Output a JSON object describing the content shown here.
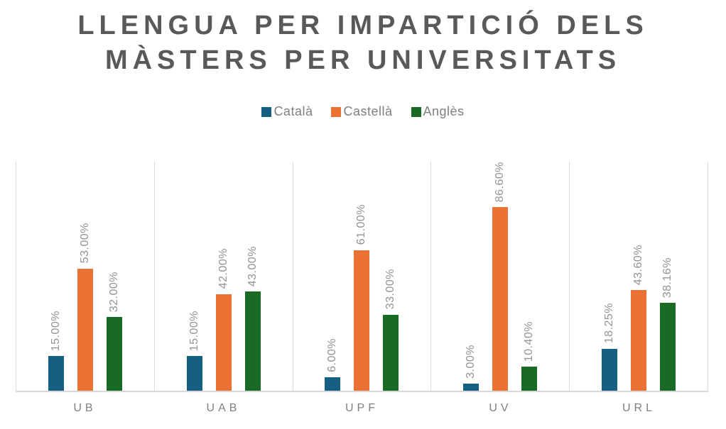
{
  "chart_data": {
    "type": "bar",
    "title": "LLENGUA PER IMPARTICIÓ DELS MÀSTERS PER UNIVERSITATS",
    "title_lines": [
      "LLENGUA PER IMPARTICIÓ DELS",
      "MÀSTERS PER UNIVERSITATS"
    ],
    "categories": [
      "UB",
      "UAB",
      "UPF",
      "UV",
      "URL"
    ],
    "series": [
      {
        "name": "Català",
        "color": "#156082",
        "values": [
          15.0,
          15.0,
          6.0,
          3.0,
          18.25
        ],
        "labels": [
          "15.00%",
          "15.00%",
          "6.00%",
          "3.00%",
          "18.25%"
        ]
      },
      {
        "name": "Castellà",
        "color": "#E97132",
        "values": [
          53.0,
          42.0,
          61.0,
          86.6,
          43.6
        ],
        "labels": [
          "53.00%",
          "42.00%",
          "61.00%",
          "86.60%",
          "43.60%"
        ]
      },
      {
        "name": "Anglès",
        "color": "#196B24",
        "values": [
          32.0,
          43.0,
          33.0,
          10.4,
          38.16
        ],
        "labels": [
          "32.00%",
          "43.00%",
          "33.00%",
          "10.40%",
          "38.16%"
        ]
      }
    ],
    "xlabel": "",
    "ylabel": "",
    "ylim": [
      0,
      100
    ],
    "value_format": "percent",
    "legend_position": "top",
    "data_label_rotation": -90,
    "grid": {
      "vertical_panel_lines": true,
      "horizontal_lines": false
    },
    "colors": {
      "title_text": "#595959",
      "legend_text": "#7F7F7F",
      "data_label_text": "#949494",
      "category_label_text": "#808080",
      "gridline": "#D9D9D9",
      "background": "#FFFFFF"
    }
  }
}
